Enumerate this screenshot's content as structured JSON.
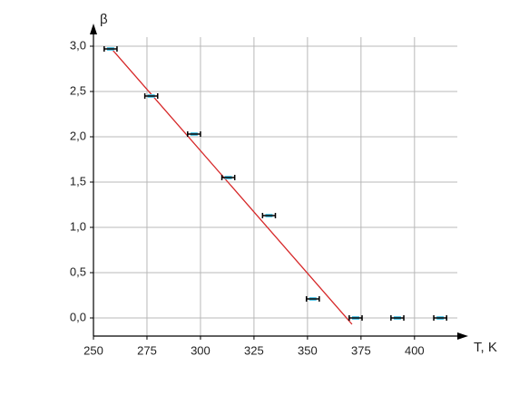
{
  "chart_data": {
    "type": "scatter",
    "x_label": "T, K",
    "y_label": "β",
    "xlim": [
      250,
      420
    ],
    "ylim": [
      -0.2,
      3.1
    ],
    "xticks": [
      250,
      275,
      300,
      325,
      350,
      375,
      400
    ],
    "yticks": [
      {
        "value": 0,
        "label": "0,0"
      },
      {
        "value": 0.5,
        "label": "0,5"
      },
      {
        "value": 1,
        "label": "1,0"
      },
      {
        "value": 1.5,
        "label": "1,5"
      },
      {
        "value": 2,
        "label": "2,0"
      },
      {
        "value": 2.5,
        "label": "2,5"
      },
      {
        "value": 3,
        "label": "3,0"
      }
    ],
    "grid": true,
    "x": [
      258,
      277,
      297,
      313,
      332,
      352.5,
      372.5,
      392,
      412
    ],
    "values": [
      2.97,
      2.45,
      2.03,
      1.55,
      1.13,
      0.21,
      0.0,
      0.0,
      0.0
    ],
    "xerr": [
      3,
      3,
      3,
      3,
      3,
      3,
      3,
      3,
      3
    ],
    "color": "#5bc8e8",
    "fit": {
      "x": [
        258.5,
        370.8
      ],
      "values": [
        2.97,
        -0.07
      ],
      "color": "#d62728"
    }
  }
}
